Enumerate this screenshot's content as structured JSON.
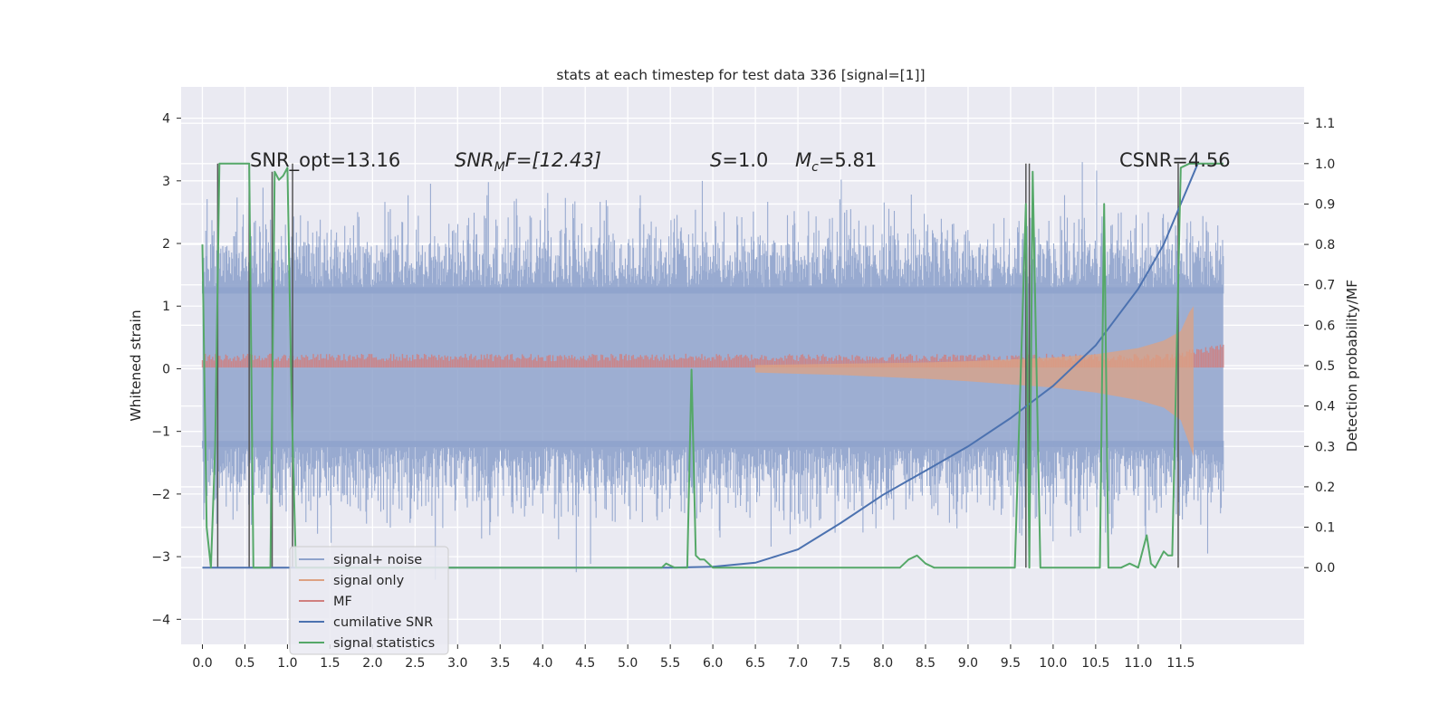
{
  "chart_data": {
    "type": "line",
    "title": "stats at each timestep for test data 336 [signal=[1]]",
    "ylabel": "Whitened strain",
    "y2label": "Detection probability/MF",
    "xlim": [
      -0.25,
      12.95
    ],
    "ylim": [
      -4.4,
      4.5
    ],
    "y2lim": [
      -0.19,
      1.19
    ],
    "x_ticks": [
      "0.0",
      "0.5",
      "1.0",
      "1.5",
      "2.0",
      "2.5",
      "3.0",
      "3.5",
      "4.0",
      "4.5",
      "5.0",
      "5.5",
      "6.0",
      "6.5",
      "7.0",
      "7.5",
      "8.0",
      "8.5",
      "9.0",
      "9.5",
      "10.0",
      "10.5",
      "11.0",
      "11.5"
    ],
    "y_ticks": [
      "4",
      "3",
      "2",
      "1",
      "0",
      "−1",
      "−2",
      "−3",
      "−4"
    ],
    "y2_ticks": [
      "1.1",
      "1.0",
      "0.9",
      "0.8",
      "0.7",
      "0.6",
      "0.5",
      "0.4",
      "0.3",
      "0.2",
      "0.1",
      "0.0"
    ],
    "grid": true,
    "legend_position": "lower-left",
    "legend": [
      {
        "name": "signal+ noise",
        "color": "#8fa3cc",
        "ghost": "noise"
      },
      {
        "name": "signal only",
        "color": "#dda283",
        "ghost": "noise"
      },
      {
        "name": "MF",
        "color": "#d07f7f",
        "ghost": "signal only"
      },
      {
        "name": "cumilative SNR",
        "color": "#4c72b0",
        "ghost": ""
      },
      {
        "name": "signal statistics",
        "color": "#55a868",
        "ghost": "statistics"
      }
    ],
    "annotations": {
      "snr_opt": "SNR_opt=13.16",
      "snr_mf_label": "SNR",
      "snr_mf_sub": "M",
      "snr_mf_rest": "F=[12.43]",
      "s_label": "S",
      "s_value": "=1.0",
      "mc_label": "M",
      "mc_sub": "c",
      "mc_value": "=5.81",
      "csnr": "CSNR=4.56"
    },
    "signal_noise_envelope": {
      "x_range": [
        0.0,
        12.0
      ],
      "core_upper": 1.3,
      "core_lower": -1.25
    },
    "signal_only_envelope": {
      "x": [
        6.5,
        7.0,
        7.5,
        8.0,
        8.5,
        9.0,
        9.5,
        10.0,
        10.5,
        11.0,
        11.3,
        11.5,
        11.6,
        11.65
      ],
      "upper": [
        0.06,
        0.07,
        0.08,
        0.09,
        0.1,
        0.12,
        0.15,
        0.18,
        0.23,
        0.33,
        0.45,
        0.6,
        0.9,
        1.0
      ],
      "lower": [
        -0.06,
        -0.08,
        -0.1,
        -0.13,
        -0.16,
        -0.2,
        -0.25,
        -0.3,
        -0.38,
        -0.5,
        -0.62,
        -0.82,
        -1.2,
        -1.4
      ]
    },
    "cumulative_snr": {
      "x": [
        0.0,
        5.5,
        6.0,
        6.5,
        7.0,
        7.5,
        8.0,
        8.5,
        9.0,
        9.5,
        10.0,
        10.5,
        11.0,
        11.3,
        11.5,
        11.7
      ],
      "y": [
        0.0,
        0.0,
        0.002,
        0.012,
        0.045,
        0.11,
        0.18,
        0.24,
        0.3,
        0.37,
        0.45,
        0.55,
        0.69,
        0.8,
        0.9,
        1.0
      ]
    },
    "signal_statistics": {
      "x": [
        0.0,
        0.05,
        0.1,
        0.15,
        0.2,
        0.25,
        0.3,
        0.45,
        0.55,
        0.6,
        0.62,
        0.8,
        0.85,
        0.9,
        0.95,
        1.0,
        1.05,
        1.1,
        1.2,
        5.4,
        5.45,
        5.55,
        5.7,
        5.75,
        5.8,
        5.85,
        5.9,
        6.0,
        6.5,
        8.2,
        8.3,
        8.4,
        8.5,
        8.6,
        9.0,
        9.55,
        9.68,
        9.72,
        9.76,
        9.85,
        10.3,
        10.55,
        10.6,
        10.65,
        10.8,
        10.9,
        11.0,
        11.1,
        11.15,
        11.2,
        11.3,
        11.35,
        11.4,
        11.5,
        11.6,
        11.65,
        11.75,
        12.0
      ],
      "y": [
        0.8,
        0.1,
        0.0,
        0.3,
        1.0,
        1.0,
        1.0,
        1.0,
        1.0,
        0.0,
        0.0,
        0.0,
        0.98,
        0.96,
        0.97,
        0.99,
        0.4,
        0.0,
        0.0,
        0.0,
        0.01,
        0.0,
        0.0,
        0.49,
        0.03,
        0.02,
        0.02,
        0.0,
        0.0,
        0.0,
        0.02,
        0.03,
        0.01,
        0.0,
        0.0,
        0.0,
        0.9,
        0.0,
        0.98,
        0.0,
        0.0,
        0.0,
        0.9,
        0.0,
        0.0,
        0.01,
        0.0,
        0.08,
        0.01,
        0.0,
        0.04,
        0.03,
        0.03,
        0.99,
        1.0,
        1.0,
        1.0,
        1.0
      ]
    },
    "vertical_markers": {
      "x": [
        0.18,
        0.55,
        0.82,
        1.06,
        9.68,
        9.72,
        11.47
      ],
      "y_top": [
        1.0,
        1.0,
        0.98,
        1.0,
        1.0,
        1.0,
        1.0
      ],
      "y_bottom": [
        0.0,
        0.0,
        0.0,
        0.0,
        0.0,
        0.0,
        0.0
      ]
    }
  }
}
